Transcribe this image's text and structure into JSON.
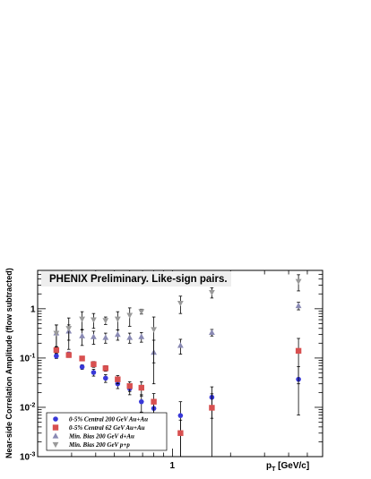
{
  "chart_data": {
    "type": "scatter",
    "title": "PHENIX Preliminary. Like-sign pairs.",
    "xlabel": "p",
    "xlabel_sub": "T",
    "xlabel_unit": " [GeV/c]",
    "ylabel": "Near-side Correlation Amplitude (flow subtracted)",
    "x_scale": "log",
    "y_scale": "log",
    "xlim": [
      0.2,
      6.0
    ],
    "ylim": [
      0.001,
      6.0
    ],
    "x_ticks": [
      {
        "value": 1,
        "label": "1"
      }
    ],
    "y_ticks": [
      {
        "value": 0.001,
        "label": "10",
        "exp": "-3"
      },
      {
        "value": 0.01,
        "label": "10",
        "exp": "-2"
      },
      {
        "value": 0.1,
        "label": "10",
        "exp": "-1"
      },
      {
        "value": 1,
        "label": "1",
        "exp": ""
      }
    ],
    "legend_position": "bottom-left",
    "series": [
      {
        "name": "0-5% Central 200 GeV Au+Au",
        "marker": "circle",
        "color": "#3838d8",
        "x": [
          0.25,
          0.29,
          0.34,
          0.39,
          0.45,
          0.52,
          0.6,
          0.69,
          0.8,
          1.1,
          1.6,
          4.5
        ],
        "y": [
          0.11,
          0.12,
          0.066,
          0.051,
          0.039,
          0.03,
          0.024,
          0.013,
          0.0095,
          0.0068,
          0.016,
          0.037
        ],
        "err": [
          0.012,
          0.012,
          0.007,
          0.008,
          0.007,
          0.006,
          0.006,
          0.005,
          0.005,
          0.0062,
          0.01,
          0.03
        ]
      },
      {
        "name": "0-5% Central 62 GeV Au+Au",
        "marker": "square",
        "color": "#d85050",
        "x": [
          0.25,
          0.29,
          0.34,
          0.39,
          0.45,
          0.52,
          0.6,
          0.69,
          0.8,
          1.1,
          1.6,
          4.5
        ],
        "y": [
          0.145,
          0.115,
          0.098,
          0.075,
          0.062,
          0.037,
          0.027,
          0.025,
          0.013,
          0.003,
          0.0098,
          0.14
        ],
        "err": [
          0.02,
          0.012,
          0.01,
          0.01,
          0.008,
          0.007,
          0.006,
          0.008,
          0.006,
          0.0025,
          0.009,
          0.11
        ]
      },
      {
        "name": "Min. Bias 200 GeV d+Au",
        "marker": "triangle-up",
        "color": "#8a8ab4",
        "x": [
          0.25,
          0.29,
          0.34,
          0.39,
          0.45,
          0.52,
          0.6,
          0.69,
          0.8,
          1.1,
          1.6,
          4.5
        ],
        "y": [
          0.32,
          0.35,
          0.28,
          0.27,
          0.26,
          0.3,
          0.26,
          0.27,
          0.13,
          0.18,
          0.33,
          1.15
        ],
        "err": [
          0.15,
          0.12,
          0.1,
          0.08,
          0.06,
          0.07,
          0.06,
          0.06,
          0.1,
          0.06,
          0.05,
          0.2
        ]
      },
      {
        "name": "Min. Bias 200 GeV p+p",
        "marker": "triangle-down",
        "color": "#9a9a9a",
        "x": [
          0.25,
          0.29,
          0.34,
          0.39,
          0.45,
          0.52,
          0.6,
          0.69,
          0.8,
          1.1,
          1.6,
          4.5
        ],
        "y": [
          0.32,
          0.4,
          0.62,
          0.6,
          0.58,
          0.62,
          0.74,
          0.88,
          0.38,
          1.3,
          2.15,
          3.6
        ],
        "err": [
          0.15,
          0.25,
          0.25,
          0.2,
          0.1,
          0.25,
          0.3,
          0.1,
          0.3,
          0.5,
          0.5,
          1.3
        ]
      }
    ]
  }
}
